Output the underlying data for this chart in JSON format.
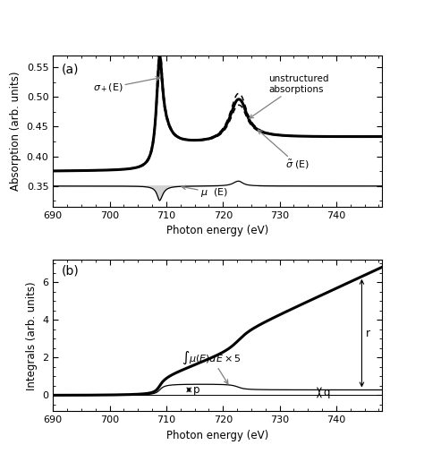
{
  "xlim": [
    690,
    748
  ],
  "panel_a": {
    "ylim": [
      0.315,
      0.57
    ],
    "yticks": [
      0.35,
      0.4,
      0.45,
      0.5,
      0.55
    ],
    "ylabel": "Absorption (arb. units)",
    "xlabel": "Photon energy (eV)",
    "label": "(a)"
  },
  "panel_b": {
    "ylim": [
      -0.85,
      7.2
    ],
    "yticks": [
      0,
      2,
      4,
      6
    ],
    "ylabel": "Integrals (arb. units)",
    "xlabel": "Photon energy (eV)",
    "label": "(b)"
  }
}
